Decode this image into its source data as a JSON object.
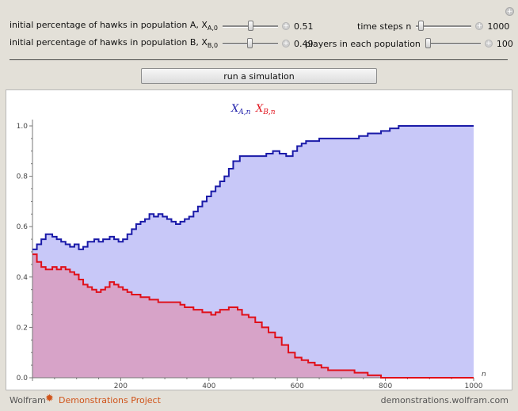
{
  "controls": {
    "hawks_a": {
      "label_main": "initial percentage of hawks in population A, X",
      "label_sub": "A,0",
      "value": "0.51",
      "fraction": 0.51
    },
    "hawks_b": {
      "label_main": "initial percentage of hawks in population B, X",
      "label_sub": "B,0",
      "value": "0.49",
      "fraction": 0.49
    },
    "time_steps": {
      "label": "time steps n",
      "value": "1000",
      "fraction": 0.05
    },
    "players": {
      "label": "players in each population",
      "value": "100",
      "fraction": 0.0
    }
  },
  "run_button_label": "run a simulation",
  "icons": {
    "plus": "+",
    "corner_plus": "+",
    "logo_star": "✹"
  },
  "footer": {
    "brand": "Wolfram",
    "project": "Demonstrations Project",
    "site": "demonstrations.wolfram.com"
  },
  "colors": {
    "series_a": "#1a1aa8",
    "series_b": "#e0101a",
    "fill_a": "#c8c8f8",
    "fill_b": "#d7a3c8",
    "accent": "#d0541a"
  },
  "chart_data": {
    "type": "area",
    "legend": [
      "X",
      "X"
    ],
    "legend_subs": [
      "A,n",
      "B,n"
    ],
    "xlabel": "n",
    "ylabel": "",
    "xlim": [
      0,
      1000
    ],
    "ylim": [
      0,
      1
    ],
    "xticks": [
      200,
      400,
      600,
      800,
      1000
    ],
    "yticks": [
      0.0,
      0.2,
      0.4,
      0.6,
      0.8,
      1.0
    ],
    "ytick_labels": [
      "0.0",
      "0.2",
      "0.4",
      "0.6",
      "0.8",
      "1.0"
    ],
    "series": [
      {
        "name": "X_A,n",
        "points": [
          [
            0,
            0.51
          ],
          [
            10,
            0.53
          ],
          [
            20,
            0.55
          ],
          [
            30,
            0.57
          ],
          [
            45,
            0.56
          ],
          [
            55,
            0.55
          ],
          [
            65,
            0.54
          ],
          [
            75,
            0.53
          ],
          [
            85,
            0.52
          ],
          [
            95,
            0.53
          ],
          [
            105,
            0.51
          ],
          [
            115,
            0.52
          ],
          [
            125,
            0.54
          ],
          [
            140,
            0.55
          ],
          [
            150,
            0.54
          ],
          [
            160,
            0.55
          ],
          [
            175,
            0.56
          ],
          [
            185,
            0.55
          ],
          [
            195,
            0.54
          ],
          [
            205,
            0.55
          ],
          [
            215,
            0.57
          ],
          [
            225,
            0.59
          ],
          [
            235,
            0.61
          ],
          [
            245,
            0.62
          ],
          [
            255,
            0.63
          ],
          [
            265,
            0.65
          ],
          [
            275,
            0.64
          ],
          [
            285,
            0.65
          ],
          [
            295,
            0.64
          ],
          [
            305,
            0.63
          ],
          [
            315,
            0.62
          ],
          [
            325,
            0.61
          ],
          [
            335,
            0.62
          ],
          [
            345,
            0.63
          ],
          [
            355,
            0.64
          ],
          [
            365,
            0.66
          ],
          [
            375,
            0.68
          ],
          [
            385,
            0.7
          ],
          [
            395,
            0.72
          ],
          [
            405,
            0.74
          ],
          [
            415,
            0.76
          ],
          [
            425,
            0.78
          ],
          [
            435,
            0.8
          ],
          [
            445,
            0.83
          ],
          [
            455,
            0.86
          ],
          [
            470,
            0.88
          ],
          [
            490,
            0.88
          ],
          [
            510,
            0.88
          ],
          [
            530,
            0.89
          ],
          [
            545,
            0.9
          ],
          [
            560,
            0.89
          ],
          [
            575,
            0.88
          ],
          [
            590,
            0.9
          ],
          [
            600,
            0.92
          ],
          [
            610,
            0.93
          ],
          [
            620,
            0.94
          ],
          [
            650,
            0.95
          ],
          [
            700,
            0.95
          ],
          [
            740,
            0.96
          ],
          [
            760,
            0.97
          ],
          [
            790,
            0.98
          ],
          [
            810,
            0.99
          ],
          [
            830,
            1.0
          ],
          [
            1000,
            1.0
          ]
        ]
      },
      {
        "name": "X_B,n",
        "points": [
          [
            0,
            0.49
          ],
          [
            10,
            0.46
          ],
          [
            20,
            0.44
          ],
          [
            30,
            0.43
          ],
          [
            45,
            0.44
          ],
          [
            55,
            0.43
          ],
          [
            65,
            0.44
          ],
          [
            75,
            0.43
          ],
          [
            85,
            0.42
          ],
          [
            95,
            0.41
          ],
          [
            105,
            0.39
          ],
          [
            115,
            0.37
          ],
          [
            125,
            0.36
          ],
          [
            135,
            0.35
          ],
          [
            145,
            0.34
          ],
          [
            155,
            0.35
          ],
          [
            165,
            0.36
          ],
          [
            175,
            0.38
          ],
          [
            185,
            0.37
          ],
          [
            195,
            0.36
          ],
          [
            205,
            0.35
          ],
          [
            215,
            0.34
          ],
          [
            225,
            0.33
          ],
          [
            235,
            0.33
          ],
          [
            245,
            0.32
          ],
          [
            255,
            0.32
          ],
          [
            265,
            0.31
          ],
          [
            275,
            0.31
          ],
          [
            285,
            0.3
          ],
          [
            295,
            0.3
          ],
          [
            305,
            0.3
          ],
          [
            315,
            0.3
          ],
          [
            325,
            0.3
          ],
          [
            335,
            0.29
          ],
          [
            345,
            0.28
          ],
          [
            355,
            0.28
          ],
          [
            365,
            0.27
          ],
          [
            375,
            0.27
          ],
          [
            385,
            0.26
          ],
          [
            395,
            0.26
          ],
          [
            405,
            0.25
          ],
          [
            415,
            0.26
          ],
          [
            425,
            0.27
          ],
          [
            435,
            0.27
          ],
          [
            445,
            0.28
          ],
          [
            455,
            0.28
          ],
          [
            465,
            0.27
          ],
          [
            475,
            0.25
          ],
          [
            490,
            0.24
          ],
          [
            505,
            0.22
          ],
          [
            520,
            0.2
          ],
          [
            535,
            0.18
          ],
          [
            550,
            0.16
          ],
          [
            565,
            0.13
          ],
          [
            580,
            0.1
          ],
          [
            595,
            0.08
          ],
          [
            610,
            0.07
          ],
          [
            625,
            0.06
          ],
          [
            640,
            0.05
          ],
          [
            655,
            0.04
          ],
          [
            670,
            0.03
          ],
          [
            700,
            0.03
          ],
          [
            730,
            0.02
          ],
          [
            760,
            0.01
          ],
          [
            790,
            0.0
          ],
          [
            1000,
            0.0
          ]
        ]
      }
    ]
  }
}
